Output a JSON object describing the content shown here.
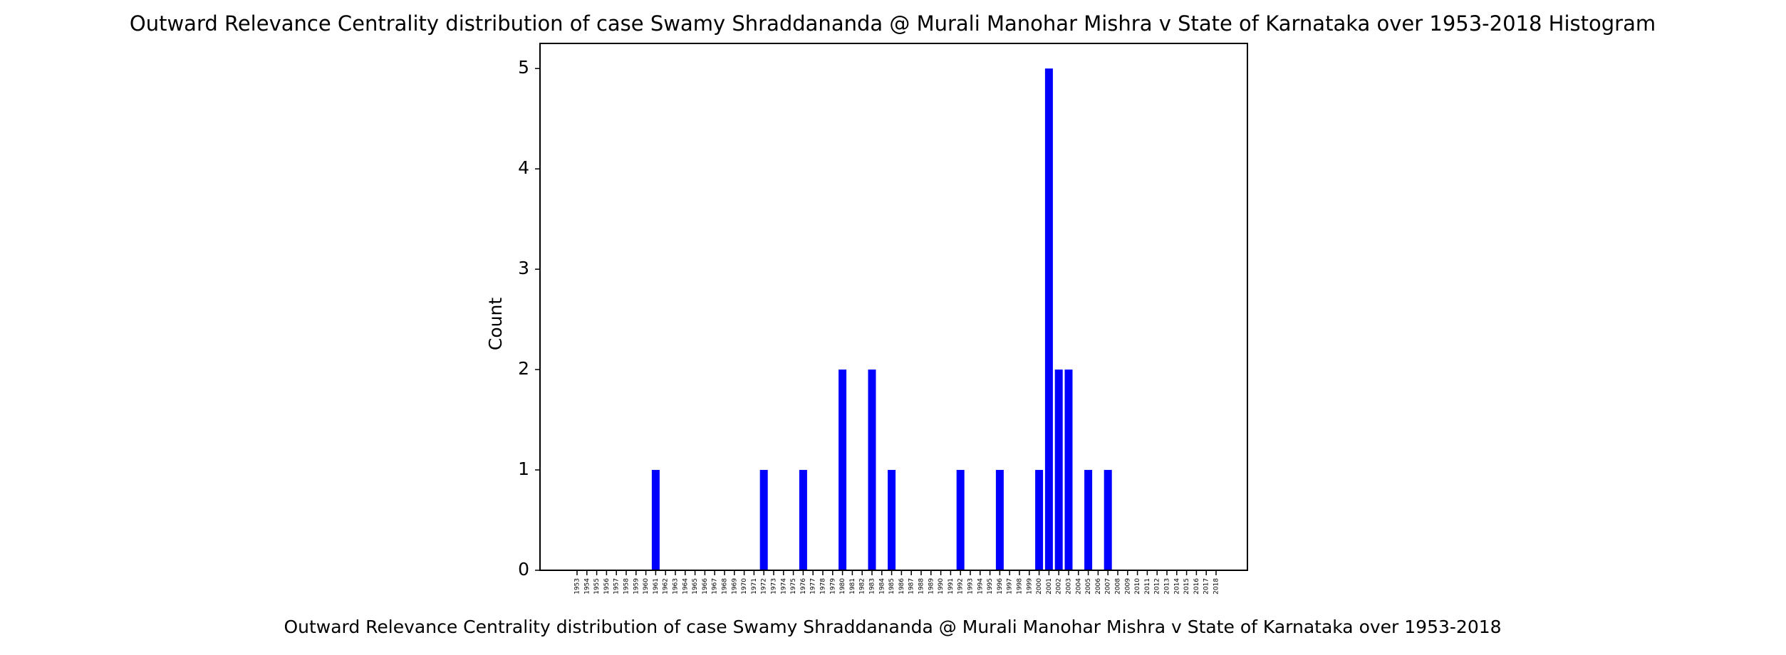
{
  "chart_data": {
    "type": "bar",
    "title": "Outward Relevance Centrality distribution of case Swamy Shraddananda @ Murali Manohar Mishra v State of Karnataka over 1953-2018 Histogram",
    "xlabel": "Outward Relevance Centrality distribution of case Swamy Shraddananda @ Murali Manohar Mishra v State of Karnataka over 1953-2018",
    "ylabel": "Count",
    "ylim": [
      0,
      5.25
    ],
    "yticks": [
      0,
      1,
      2,
      3,
      4,
      5
    ],
    "grid": false,
    "bar_color": "#0000ff",
    "categories": [
      "1953",
      "1954",
      "1955",
      "1956",
      "1957",
      "1958",
      "1959",
      "1960",
      "1961",
      "1962",
      "1963",
      "1964",
      "1965",
      "1966",
      "1967",
      "1968",
      "1969",
      "1970",
      "1971",
      "1972",
      "1973",
      "1974",
      "1975",
      "1976",
      "1977",
      "1978",
      "1979",
      "1980",
      "1981",
      "1982",
      "1983",
      "1984",
      "1985",
      "1986",
      "1987",
      "1988",
      "1989",
      "1990",
      "1991",
      "1992",
      "1993",
      "1994",
      "1995",
      "1996",
      "1997",
      "1998",
      "1999",
      "2000",
      "2001",
      "2002",
      "2003",
      "2004",
      "2005",
      "2006",
      "2007",
      "2008",
      "2009",
      "2010",
      "2011",
      "2012",
      "2013",
      "2014",
      "2015",
      "2016",
      "2017",
      "2018"
    ],
    "values": [
      0,
      0,
      0,
      0,
      0,
      0,
      0,
      0,
      1,
      0,
      0,
      0,
      0,
      0,
      0,
      0,
      0,
      0,
      0,
      1,
      0,
      0,
      0,
      1,
      0,
      0,
      0,
      2,
      0,
      0,
      2,
      0,
      1,
      0,
      0,
      0,
      0,
      0,
      0,
      1,
      0,
      0,
      0,
      1,
      0,
      0,
      0,
      1,
      5,
      2,
      2,
      0,
      1,
      0,
      1,
      0,
      0,
      0,
      0,
      0,
      0,
      0,
      0,
      0,
      0,
      0
    ]
  }
}
